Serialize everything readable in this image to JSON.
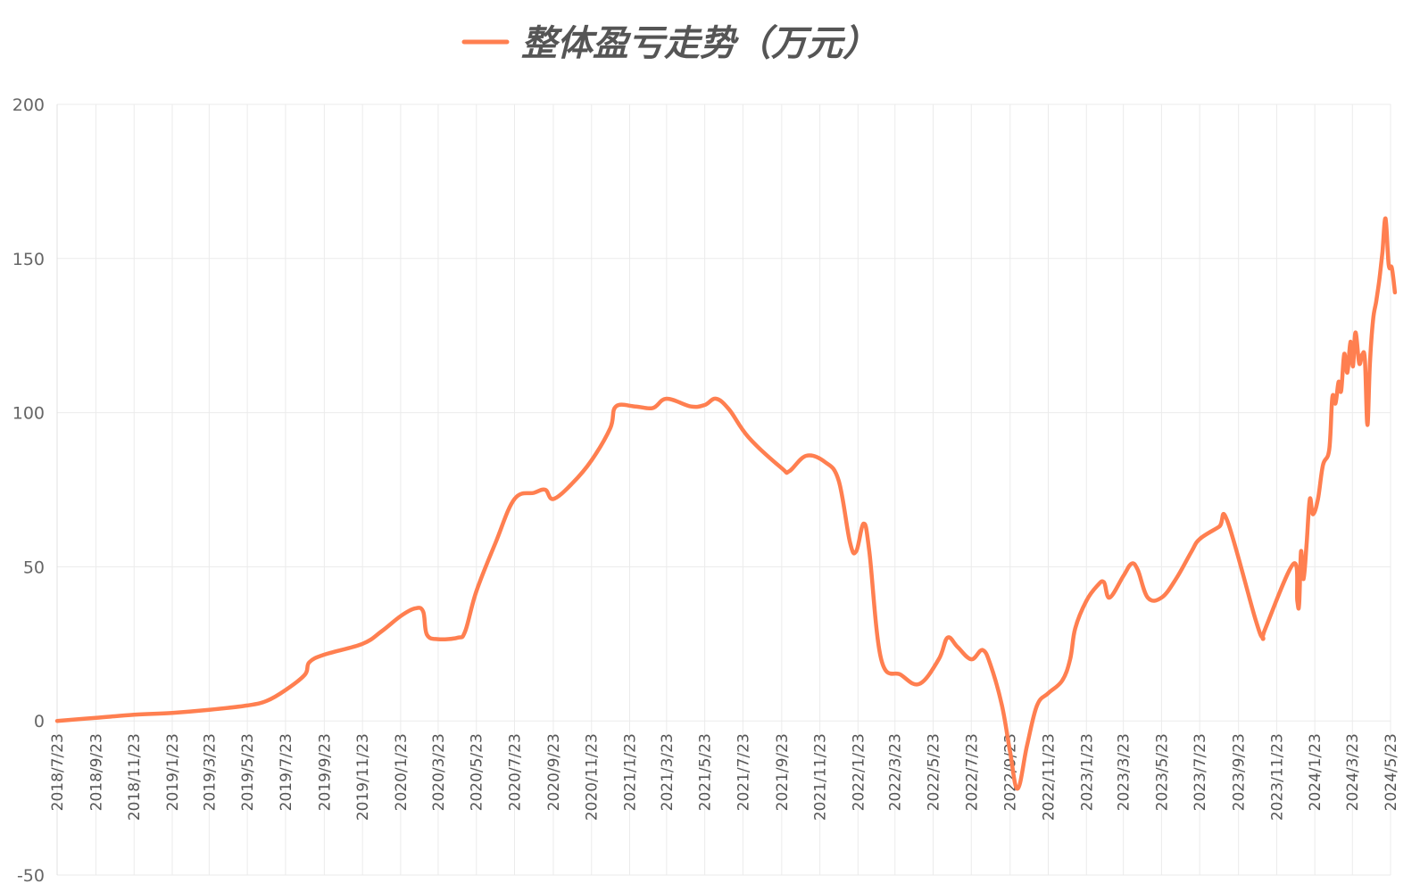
{
  "chart_data": {
    "type": "line",
    "title": "",
    "xlabel": "",
    "ylabel": "",
    "ylim": [
      -50,
      200
    ],
    "yticks": [
      "200",
      "150",
      "100",
      "50",
      "0",
      "-50"
    ],
    "grid": true,
    "legend_position": "top-center",
    "line_color": "#ff7f50",
    "series": [
      {
        "name": "整体盈亏走势（万元）",
        "points": [
          [
            "2018/7/23",
            0
          ],
          [
            "2018/9/23",
            1
          ],
          [
            "2018/11/23",
            2
          ],
          [
            "2019/1/23",
            2.6
          ],
          [
            "2019/3/23",
            3.6
          ],
          [
            "2019/5/23",
            5
          ],
          [
            "2019/6/23",
            6.5
          ],
          [
            "2019/7/23",
            10
          ],
          [
            "2019/8/23",
            15
          ],
          [
            "2019/8/30",
            19
          ],
          [
            "2019/9/23",
            21.5
          ],
          [
            "2019/11/23",
            25
          ],
          [
            "2019/12/23",
            29
          ],
          [
            "2020/1/23",
            34
          ],
          [
            "2020/2/15",
            36.5
          ],
          [
            "2020/2/28",
            35.5
          ],
          [
            "2020/3/5",
            28
          ],
          [
            "2020/3/23",
            26.5
          ],
          [
            "2020/4/23",
            27
          ],
          [
            "2020/5/5",
            29
          ],
          [
            "2020/5/23",
            42
          ],
          [
            "2020/6/23",
            58
          ],
          [
            "2020/7/23",
            72
          ],
          [
            "2020/8/23",
            74
          ],
          [
            "2020/9/10",
            75
          ],
          [
            "2020/9/23",
            72
          ],
          [
            "2020/10/23",
            77
          ],
          [
            "2020/11/23",
            84.5
          ],
          [
            "2020/12/23",
            95
          ],
          [
            "2021/1/1",
            102
          ],
          [
            "2021/2/1",
            102
          ],
          [
            "2021/3/1",
            101.5
          ],
          [
            "2021/3/23",
            104.5
          ],
          [
            "2021/5/1",
            102
          ],
          [
            "2021/5/23",
            102.5
          ],
          [
            "2021/6/10",
            104.5
          ],
          [
            "2021/7/1",
            101
          ],
          [
            "2021/8/1",
            92
          ],
          [
            "2021/9/23",
            82
          ],
          [
            "2021/10/5",
            81
          ],
          [
            "2021/11/1",
            86
          ],
          [
            "2021/12/1",
            84
          ],
          [
            "2021/12/23",
            78
          ],
          [
            "2022/1/10",
            58
          ],
          [
            "2022/1/20",
            55
          ],
          [
            "2022/2/1",
            64
          ],
          [
            "2022/2/10",
            55
          ],
          [
            "2022/3/1",
            20
          ],
          [
            "2022/4/1",
            15
          ],
          [
            "2022/5/1",
            12
          ],
          [
            "2022/6/1",
            20
          ],
          [
            "2022/6/15",
            27
          ],
          [
            "2022/7/1",
            24
          ],
          [
            "2022/7/23",
            20
          ],
          [
            "2022/8/10",
            23
          ],
          [
            "2022/8/23",
            18
          ],
          [
            "2022/9/10",
            5
          ],
          [
            "2022/9/23",
            -10
          ],
          [
            "2022/10/5",
            -22
          ],
          [
            "2022/10/20",
            -8
          ],
          [
            "2022/11/5",
            5
          ],
          [
            "2022/11/23",
            9
          ],
          [
            "2022/12/15",
            13
          ],
          [
            "2022/12/28",
            20
          ],
          [
            "2023/1/5",
            30
          ],
          [
            "2023/1/23",
            39
          ],
          [
            "2023/2/10",
            44
          ],
          [
            "2023/2/20",
            45
          ],
          [
            "2023/3/1",
            40
          ],
          [
            "2023/3/23",
            47
          ],
          [
            "2023/4/5",
            51
          ],
          [
            "2023/4/15",
            49
          ],
          [
            "2023/5/1",
            40
          ],
          [
            "2023/5/23",
            40
          ],
          [
            "2023/6/15",
            46
          ],
          [
            "2023/7/10",
            55
          ],
          [
            "2023/7/23",
            59
          ],
          [
            "2023/8/23",
            63
          ],
          [
            "2023/9/5",
            65
          ],
          [
            "2023/10/20",
            33
          ],
          [
            "2023/11/1",
            27
          ],
          [
            "2023/11/5",
            30
          ],
          [
            "2023/12/20",
            51
          ],
          [
            "2023/12/26",
            39
          ],
          [
            "2023/12/29",
            38
          ],
          [
            "2024/1/1",
            55
          ],
          [
            "2024/1/5",
            46
          ],
          [
            "2024/1/10",
            58
          ],
          [
            "2024/1/15",
            72
          ],
          [
            "2024/1/20",
            67
          ],
          [
            "2024/1/28",
            72
          ],
          [
            "2024/2/5",
            83
          ],
          [
            "2024/2/15",
            88
          ],
          [
            "2024/2/20",
            105
          ],
          [
            "2024/2/25",
            103
          ],
          [
            "2024/3/1",
            110
          ],
          [
            "2024/3/5",
            107
          ],
          [
            "2024/3/10",
            119
          ],
          [
            "2024/3/15",
            113
          ],
          [
            "2024/3/20",
            123
          ],
          [
            "2024/3/24",
            115
          ],
          [
            "2024/3/28",
            126
          ],
          [
            "2024/4/3",
            116
          ],
          [
            "2024/4/8",
            119
          ],
          [
            "2024/4/12",
            117
          ],
          [
            "2024/4/16",
            96
          ],
          [
            "2024/4/20",
            116
          ],
          [
            "2024/4/25",
            130
          ],
          [
            "2024/4/30",
            136
          ],
          [
            "2024/5/5",
            143
          ],
          [
            "2024/5/10",
            152
          ],
          [
            "2024/5/15",
            163
          ],
          [
            "2024/5/20",
            148
          ],
          [
            "2024/5/25",
            147
          ],
          [
            "2024/5/30",
            139
          ]
        ]
      }
    ],
    "x_tick_labels": [
      "2018/7/23",
      "2018/9/23",
      "2018/11/23",
      "2019/1/23",
      "2019/3/23",
      "2019/5/23",
      "2019/7/23",
      "2019/9/23",
      "2019/11/23",
      "2020/1/23",
      "2020/3/23",
      "2020/5/23",
      "2020/7/23",
      "2020/9/23",
      "2020/11/23",
      "2021/1/23",
      "2021/3/23",
      "2021/5/23",
      "2021/7/23",
      "2021/9/23",
      "2021/11/23",
      "2022/1/23",
      "2022/3/23",
      "2022/5/23",
      "2022/7/23",
      "2022/9/23",
      "2022/11/23",
      "2023/1/23",
      "2023/3/23",
      "2023/5/23",
      "2023/7/23",
      "2023/9/23",
      "2023/11/23",
      "2024/1/23",
      "2024/3/23",
      "2024/5/23"
    ]
  }
}
